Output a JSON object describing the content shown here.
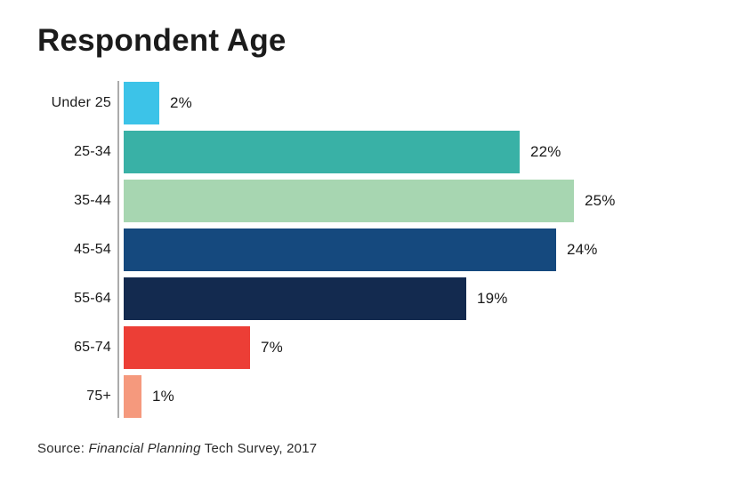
{
  "header": {
    "title": "Respondent Age"
  },
  "chart_data": {
    "type": "bar",
    "orientation": "horizontal",
    "title": "Respondent Age",
    "categories": [
      "Under 25",
      "25-34",
      "35-44",
      "45-54",
      "55-64",
      "65-74",
      "75+"
    ],
    "values": [
      2,
      22,
      25,
      24,
      19,
      7,
      1
    ],
    "value_labels": [
      "2%",
      "22%",
      "25%",
      "24%",
      "19%",
      "7%",
      "1%"
    ],
    "bar_colors": [
      "#3cc3e8",
      "#39b1a6",
      "#a7d6b1",
      "#15497e",
      "#132a4f",
      "#ec3e36",
      "#f5997d"
    ],
    "xlim": [
      0,
      25
    ],
    "grid": false,
    "legend": "none",
    "axis_line_color": "#ababab",
    "label_color": "#1a1a1a"
  },
  "source": {
    "prefix": "Source: ",
    "publication": "Financial Planning",
    "suffix": " Tech Survey, 2017"
  }
}
